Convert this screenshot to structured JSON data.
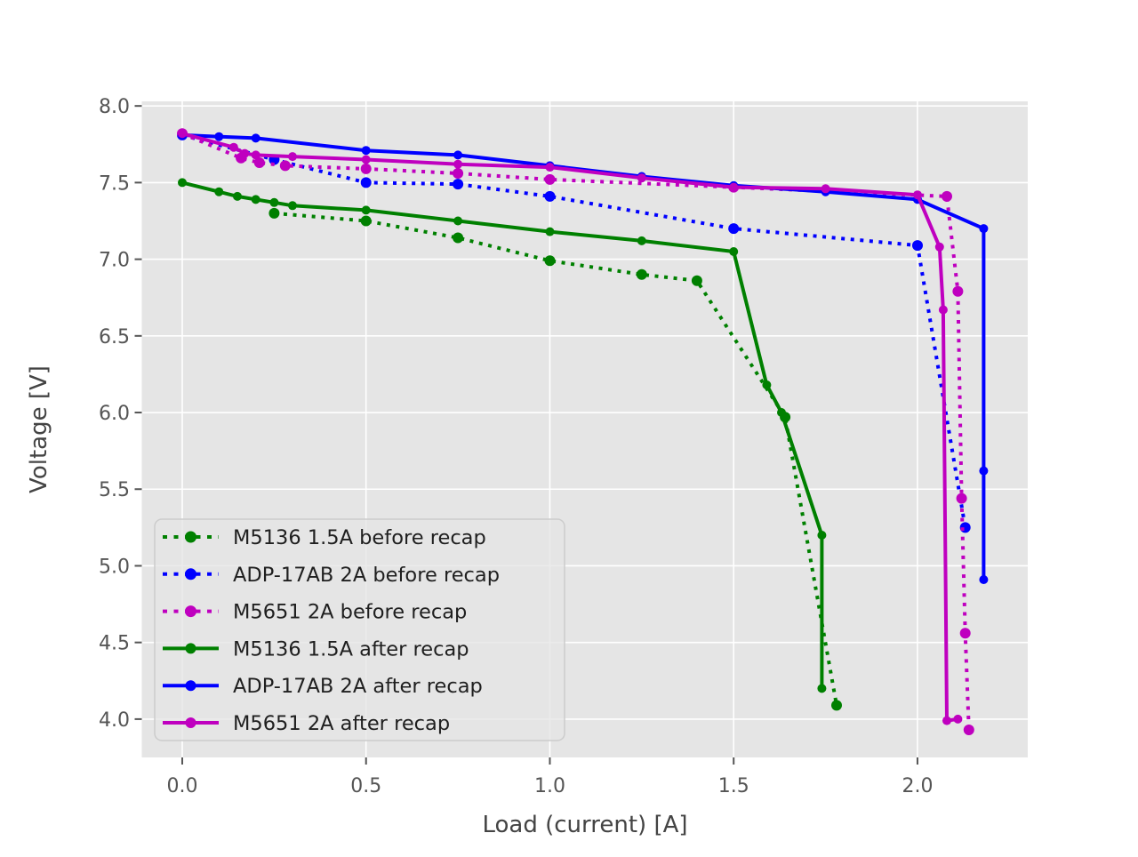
{
  "chart_data": {
    "type": "line",
    "title": "",
    "xlabel": "Load (current) [A]",
    "ylabel": "Voltage [V]",
    "xlim": [
      -0.11,
      2.3
    ],
    "ylim": [
      3.75,
      8.03
    ],
    "xticks": [
      0.0,
      0.5,
      1.0,
      1.5,
      2.0
    ],
    "yticks": [
      4.0,
      4.5,
      5.0,
      5.5,
      6.0,
      6.5,
      7.0,
      7.5,
      8.0
    ],
    "grid": true,
    "legend_position": "lower left",
    "colors": {
      "figure_bg": "#ffffff",
      "plot_bg": "#e5e5e5",
      "grid": "#ffffff",
      "tick": "#555555",
      "tick_label": "#555555",
      "axis_label": "#444444",
      "legend_text": "#1f1f1f",
      "legend_edge": "#cccccc",
      "legend_bg": "#e5e5e5",
      "green": "#008000",
      "blue": "#0000ff",
      "magenta": "#bf00bf"
    },
    "series": [
      {
        "name": "M5136 1.5A before recap",
        "color": "#008000",
        "style": "dotted",
        "x": [
          0.25,
          0.5,
          0.75,
          1.0,
          1.25,
          1.4,
          1.64,
          1.78
        ],
        "y": [
          7.3,
          7.25,
          7.14,
          6.99,
          6.9,
          6.86,
          5.97,
          4.09
        ]
      },
      {
        "name": "ADP-17AB 2A before recap",
        "color": "#0000ff",
        "style": "dotted",
        "x": [
          0.0,
          0.25,
          0.5,
          0.75,
          1.0,
          1.5,
          2.0,
          2.13
        ],
        "y": [
          7.81,
          7.65,
          7.5,
          7.49,
          7.41,
          7.2,
          7.09,
          5.25
        ]
      },
      {
        "name": "M5651 2A before recap",
        "color": "#bf00bf",
        "style": "dotted",
        "x": [
          0.0,
          0.16,
          0.21,
          0.28,
          0.5,
          0.75,
          1.0,
          1.5,
          2.08,
          2.11,
          2.12,
          2.13,
          2.14
        ],
        "y": [
          7.82,
          7.66,
          7.63,
          7.61,
          7.59,
          7.56,
          7.52,
          7.47,
          7.41,
          6.79,
          5.44,
          4.56,
          3.93
        ]
      },
      {
        "name": "M5136 1.5A after recap",
        "color": "#008000",
        "style": "solid",
        "x": [
          0.0,
          0.1,
          0.15,
          0.2,
          0.25,
          0.3,
          0.5,
          0.75,
          1.0,
          1.25,
          1.5,
          1.59,
          1.63,
          1.74,
          1.74
        ],
        "y": [
          7.5,
          7.44,
          7.41,
          7.39,
          7.37,
          7.35,
          7.32,
          7.25,
          7.18,
          7.12,
          7.05,
          6.18,
          6.0,
          5.2,
          4.2
        ]
      },
      {
        "name": "ADP-17AB 2A after recap",
        "color": "#0000ff",
        "style": "solid",
        "x": [
          0.0,
          0.1,
          0.2,
          0.5,
          0.75,
          1.0,
          1.25,
          1.5,
          1.75,
          2.0,
          2.18,
          2.18,
          2.18
        ],
        "y": [
          7.81,
          7.8,
          7.79,
          7.71,
          7.68,
          7.61,
          7.54,
          7.48,
          7.44,
          7.39,
          7.2,
          5.62,
          4.91
        ]
      },
      {
        "name": "M5651 2A after recap",
        "color": "#bf00bf",
        "style": "solid",
        "x": [
          0.0,
          0.14,
          0.17,
          0.2,
          0.3,
          0.5,
          0.75,
          1.0,
          1.25,
          1.5,
          1.75,
          2.0,
          2.06,
          2.07,
          2.08,
          2.11
        ],
        "y": [
          7.82,
          7.73,
          7.69,
          7.68,
          7.67,
          7.65,
          7.62,
          7.6,
          7.53,
          7.47,
          7.46,
          7.42,
          7.08,
          6.67,
          3.99,
          4.0
        ]
      }
    ]
  }
}
